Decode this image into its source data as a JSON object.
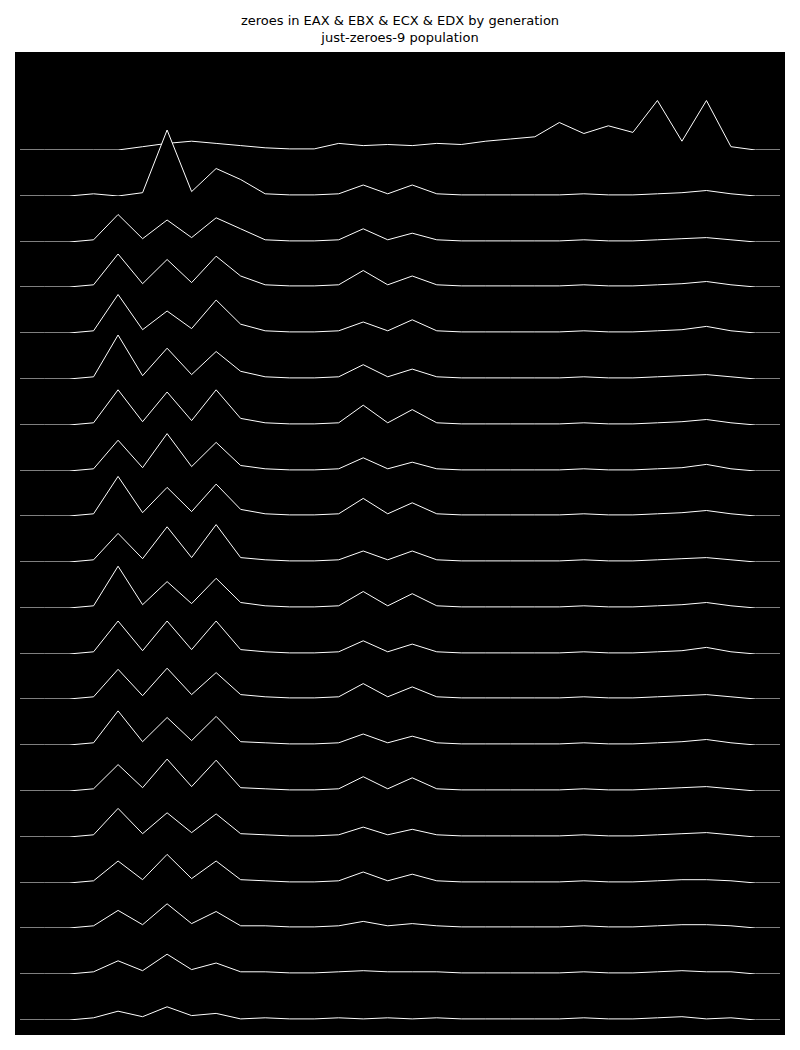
{
  "chart_data": {
    "type": "ridgeline",
    "title": "zeroes in EAX & EBX & ECX & EDX by generation",
    "subtitle": "just-zeroes-9 population",
    "tick_labels": false,
    "grid": false,
    "color": "#ffffff",
    "x": [
      0,
      1,
      2,
      3,
      4,
      5,
      6,
      7,
      8,
      9,
      10,
      11,
      12,
      13,
      14,
      15,
      16,
      17,
      18,
      19,
      20,
      21,
      22,
      23,
      24,
      25,
      26,
      27,
      28,
      29,
      30,
      31
    ],
    "xlim": [
      0,
      31
    ],
    "ylim": [
      0,
      10
    ],
    "series": [
      {
        "values": [
          0,
          0,
          0,
          0,
          0,
          0.3,
          0.6,
          0.8,
          0.6,
          0.4,
          0.2,
          0.1,
          0.1,
          0.6,
          0.4,
          0.5,
          0.4,
          0.6,
          0.5,
          0.8,
          1,
          1.2,
          2.5,
          1.5,
          2.2,
          1.6,
          4.5,
          0.8,
          4.5,
          0.3,
          0,
          0
        ]
      },
      {
        "values": [
          0,
          0,
          0,
          0.2,
          0,
          0.3,
          6,
          0.4,
          2.5,
          1.5,
          0.2,
          0.1,
          0.1,
          0.2,
          1,
          0.2,
          1,
          0.2,
          0.1,
          0.1,
          0.1,
          0.1,
          0.1,
          0.2,
          0.1,
          0.1,
          0.2,
          0.3,
          0.5,
          0.2,
          0,
          0
        ]
      },
      {
        "values": [
          0,
          0,
          0,
          0.2,
          2.5,
          0.3,
          2,
          0.4,
          2.2,
          1.2,
          0.2,
          0.1,
          0.1,
          0.2,
          1.2,
          0.2,
          0.8,
          0.2,
          0.1,
          0.1,
          0.1,
          0.1,
          0.1,
          0.2,
          0.1,
          0.1,
          0.2,
          0.3,
          0.4,
          0.2,
          0,
          0
        ]
      },
      {
        "values": [
          0,
          0,
          0,
          0.2,
          3,
          0.3,
          2.5,
          0.4,
          2.8,
          1,
          0.2,
          0.1,
          0.1,
          0.2,
          1.5,
          0.2,
          1,
          0.2,
          0.1,
          0.1,
          0.1,
          0.1,
          0.1,
          0.2,
          0.1,
          0.1,
          0.2,
          0.3,
          0.5,
          0.2,
          0,
          0
        ]
      },
      {
        "values": [
          0,
          0,
          0,
          0.2,
          3.5,
          0.3,
          2,
          0.4,
          3,
          0.8,
          0.2,
          0.1,
          0.1,
          0.2,
          1,
          0.2,
          1.2,
          0.2,
          0.1,
          0.1,
          0.1,
          0.1,
          0.1,
          0.2,
          0.1,
          0.1,
          0.2,
          0.3,
          0.6,
          0.2,
          0,
          0
        ]
      },
      {
        "values": [
          0,
          0,
          0,
          0.2,
          4,
          0.3,
          2.8,
          0.4,
          2.5,
          0.7,
          0.2,
          0.1,
          0.1,
          0.2,
          1.3,
          0.2,
          0.9,
          0.2,
          0.1,
          0.1,
          0.1,
          0.1,
          0.1,
          0.2,
          0.1,
          0.1,
          0.2,
          0.3,
          0.4,
          0.2,
          0,
          0
        ]
      },
      {
        "values": [
          0,
          0,
          0,
          0.2,
          3.2,
          0.3,
          3,
          0.4,
          3.2,
          0.6,
          0.2,
          0.1,
          0.1,
          0.2,
          1.8,
          0.2,
          1.4,
          0.2,
          0.1,
          0.1,
          0.1,
          0.1,
          0.1,
          0.2,
          0.1,
          0.1,
          0.2,
          0.3,
          0.5,
          0.2,
          0,
          0
        ]
      },
      {
        "values": [
          0,
          0,
          0,
          0.2,
          2.8,
          0.3,
          3.4,
          0.4,
          2.6,
          0.5,
          0.2,
          0.1,
          0.1,
          0.2,
          1.2,
          0.2,
          0.8,
          0.2,
          0.1,
          0.1,
          0.1,
          0.1,
          0.1,
          0.2,
          0.1,
          0.1,
          0.2,
          0.3,
          0.6,
          0.2,
          0,
          0
        ]
      },
      {
        "values": [
          0,
          0,
          0,
          0.2,
          3.6,
          0.3,
          2.6,
          0.4,
          2.9,
          0.6,
          0.2,
          0.1,
          0.1,
          0.2,
          1.6,
          0.2,
          1.2,
          0.2,
          0.1,
          0.1,
          0.1,
          0.1,
          0.1,
          0.2,
          0.1,
          0.1,
          0.2,
          0.3,
          0.5,
          0.2,
          0,
          0
        ]
      },
      {
        "values": [
          0,
          0,
          0,
          0.2,
          2.6,
          0.3,
          3.2,
          0.4,
          3.4,
          0.4,
          0.2,
          0.1,
          0.1,
          0.2,
          1,
          0.2,
          1,
          0.2,
          0.1,
          0.1,
          0.1,
          0.1,
          0.1,
          0.2,
          0.1,
          0.1,
          0.2,
          0.3,
          0.4,
          0.2,
          0,
          0
        ]
      },
      {
        "values": [
          0,
          0,
          0,
          0.2,
          3.8,
          0.3,
          2.4,
          0.4,
          2.7,
          0.5,
          0.2,
          0.1,
          0.1,
          0.2,
          1.5,
          0.2,
          1.3,
          0.2,
          0.1,
          0.1,
          0.1,
          0.1,
          0.1,
          0.2,
          0.1,
          0.1,
          0.2,
          0.3,
          0.5,
          0.2,
          0,
          0
        ]
      },
      {
        "values": [
          0,
          0,
          0,
          0.2,
          3,
          0.3,
          3,
          0.4,
          3,
          0.4,
          0.2,
          0.1,
          0.1,
          0.2,
          1.2,
          0.2,
          0.9,
          0.2,
          0.1,
          0.1,
          0.1,
          0.1,
          0.1,
          0.2,
          0.1,
          0.1,
          0.2,
          0.3,
          0.6,
          0.2,
          0,
          0
        ]
      },
      {
        "values": [
          0,
          0,
          0,
          0.2,
          2.7,
          0.3,
          2.8,
          0.4,
          2.4,
          0.4,
          0.2,
          0.1,
          0.1,
          0.2,
          1.4,
          0.2,
          1.1,
          0.2,
          0.1,
          0.1,
          0.1,
          0.1,
          0.1,
          0.2,
          0.1,
          0.1,
          0.2,
          0.3,
          0.4,
          0.2,
          0,
          0
        ]
      },
      {
        "values": [
          0,
          0,
          0,
          0.2,
          3.1,
          0.3,
          2.5,
          0.4,
          2.6,
          0.3,
          0.2,
          0.1,
          0.1,
          0.2,
          1,
          0.2,
          0.8,
          0.2,
          0.1,
          0.1,
          0.1,
          0.1,
          0.1,
          0.2,
          0.1,
          0.1,
          0.2,
          0.3,
          0.5,
          0.2,
          0,
          0
        ]
      },
      {
        "values": [
          0,
          0,
          0,
          0.2,
          2.4,
          0.3,
          2.9,
          0.4,
          2.8,
          0.3,
          0.2,
          0.1,
          0.1,
          0.2,
          1.3,
          0.2,
          1.2,
          0.2,
          0.1,
          0.1,
          0.1,
          0.1,
          0.1,
          0.2,
          0.1,
          0.1,
          0.2,
          0.3,
          0.4,
          0.2,
          0,
          0
        ]
      },
      {
        "values": [
          0,
          0,
          0,
          0.2,
          2.6,
          0.3,
          2.2,
          0.4,
          2.1,
          0.3,
          0.2,
          0.1,
          0.1,
          0.2,
          0.9,
          0.2,
          0.7,
          0.2,
          0.1,
          0.1,
          0.1,
          0.1,
          0.1,
          0.2,
          0.1,
          0.1,
          0.2,
          0.3,
          0.4,
          0.2,
          0,
          0
        ]
      },
      {
        "values": [
          0,
          0,
          0,
          0.2,
          2,
          0.3,
          2.6,
          0.4,
          2,
          0.3,
          0.2,
          0.1,
          0.1,
          0.2,
          1,
          0.2,
          0.8,
          0.2,
          0.1,
          0.1,
          0.1,
          0.1,
          0.1,
          0.2,
          0.1,
          0.1,
          0.2,
          0.3,
          0.3,
          0.2,
          0,
          0
        ]
      },
      {
        "values": [
          0,
          0,
          0,
          0.2,
          1.6,
          0.3,
          2.2,
          0.4,
          1.5,
          0.2,
          0.2,
          0.1,
          0.1,
          0.2,
          0.6,
          0.2,
          0.4,
          0.2,
          0.1,
          0.1,
          0.1,
          0.1,
          0.1,
          0.2,
          0.1,
          0.1,
          0.2,
          0.3,
          0.3,
          0.2,
          0,
          0
        ]
      },
      {
        "values": [
          0,
          0,
          0,
          0.2,
          1.2,
          0.3,
          1.8,
          0.4,
          1,
          0.2,
          0.2,
          0.1,
          0.1,
          0.2,
          0.3,
          0.2,
          0.2,
          0.2,
          0.1,
          0.1,
          0.1,
          0.1,
          0.1,
          0.2,
          0.1,
          0.1,
          0.2,
          0.3,
          0.2,
          0.2,
          0,
          0
        ]
      },
      {
        "values": [
          0,
          0,
          0,
          0.2,
          0.8,
          0.3,
          1.2,
          0.4,
          0.6,
          0.1,
          0.2,
          0.1,
          0.1,
          0.2,
          0.1,
          0.2,
          0.1,
          0.2,
          0.1,
          0.1,
          0.1,
          0.1,
          0.1,
          0.2,
          0.1,
          0.1,
          0.2,
          0.3,
          0.1,
          0.2,
          0,
          0
        ]
      }
    ]
  }
}
